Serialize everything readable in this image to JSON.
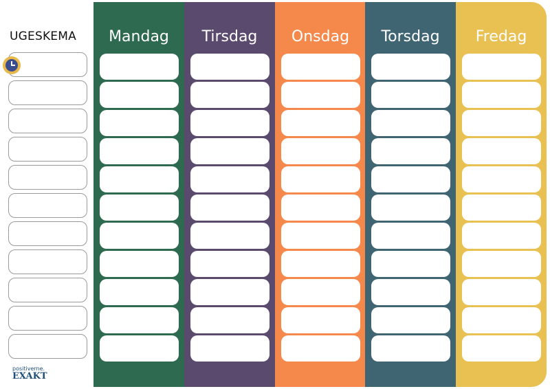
{
  "header": {
    "title": "UGESKEMA"
  },
  "days": [
    {
      "label": "Mandag",
      "color": "#2d6a4f"
    },
    {
      "label": "Tirsdag",
      "color": "#5a4a6e"
    },
    {
      "label": "Onsdag",
      "color": "#f4894b"
    },
    {
      "label": "Torsdag",
      "color": "#406572"
    },
    {
      "label": "Fredag",
      "color": "#e9c152"
    }
  ],
  "slots": [
    "",
    "",
    "",
    "",
    "",
    "",
    "",
    "",
    "",
    "",
    ""
  ],
  "icons": {
    "time": "clock-icon"
  },
  "logo": {
    "small": "positiverne.",
    "big": "EXAKT"
  }
}
